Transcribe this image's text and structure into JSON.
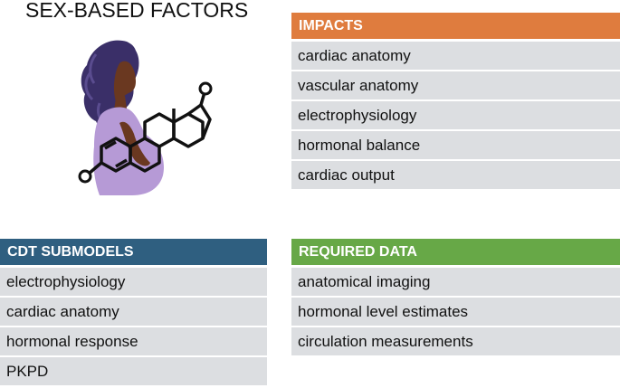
{
  "title": "SEX-BASED FACTORS",
  "colors": {
    "impacts": "#df7c3e",
    "cdt_submodels": "#2f5f80",
    "required_data": "#67a847",
    "row_fill": "#dcdee1",
    "figure_body": "#b69ad6",
    "hair": "#3a2f68",
    "skin": "#6a3820"
  },
  "illustration": {
    "icon": "pregnant-woman-with-steroid-molecule-icon"
  },
  "impacts": {
    "header": "IMPACTS",
    "items": [
      "cardiac anatomy",
      "vascular anatomy",
      "electrophysiology",
      "hormonal balance",
      "cardiac output"
    ]
  },
  "cdt_submodels": {
    "header": "CDT SUBMODELS",
    "items": [
      "electrophysiology",
      "cardiac anatomy",
      "hormonal response",
      "PKPD"
    ]
  },
  "required_data": {
    "header": "REQUIRED DATA",
    "items": [
      "anatomical imaging",
      "hormonal level estimates",
      "circulation measurements"
    ]
  }
}
